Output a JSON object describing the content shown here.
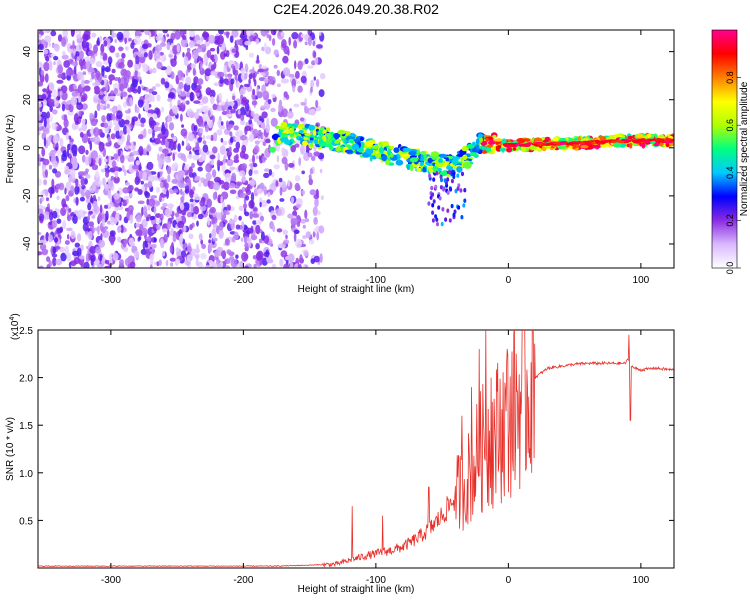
{
  "figure_title": "C2E4.2026.049.20.38.R02",
  "chart_data": [
    {
      "type": "heatmap",
      "xlabel": "Height of straight line (km)",
      "ylabel": "Frequency (Hz)",
      "xlim": [
        -355,
        125
      ],
      "ylim": [
        -50,
        49
      ],
      "xticks": [
        -300,
        -200,
        -100,
        0,
        100
      ],
      "yticks": [
        -40,
        -20,
        0,
        20,
        40
      ],
      "colorbar": {
        "label": "Normalized spectral amplitude",
        "range": [
          0.0,
          1.0
        ],
        "ticks": [
          "0.0",
          "0.2",
          "0.4",
          "0.6",
          "0.8"
        ],
        "colors": [
          "#ffffff",
          "#d9b8ff",
          "#8a2be2",
          "#0000ff",
          "#00c8ff",
          "#00ff80",
          "#b0ff00",
          "#ffff00",
          "#ff8000",
          "#ff0000",
          "#ff0090"
        ]
      },
      "regions": [
        {
          "name": "noise",
          "x_range": [
            -355,
            -140
          ],
          "y_range": [
            -50,
            49
          ],
          "amplitude": [
            0.05,
            0.25
          ]
        },
        {
          "name": "signal-track",
          "points": [
            [
              -175,
              6
            ],
            [
              -150,
              5
            ],
            [
              -120,
              2
            ],
            [
              -100,
              -1
            ],
            [
              -80,
              -4
            ],
            [
              -60,
              -6
            ],
            [
              -40,
              -8
            ],
            [
              -20,
              2
            ],
            [
              0,
              1
            ],
            [
              50,
              2
            ],
            [
              100,
              3
            ],
            [
              125,
              3
            ]
          ],
          "amplitude": [
            0.3,
            1.0
          ]
        }
      ]
    },
    {
      "type": "line",
      "xlabel": "Height of straight line (km)",
      "ylabel": "SNR (10 * v/v)",
      "multiplier_label": "(x10",
      "multiplier_exp": "4",
      "multiplier_close": ")",
      "xlim": [
        -355,
        125
      ],
      "ylim": [
        0,
        2.5
      ],
      "xticks": [
        -300,
        -200,
        -100,
        0,
        100
      ],
      "yticks": [
        0.5,
        1.0,
        1.5,
        2.0,
        2.5
      ],
      "ytick_labels": [
        "0.5",
        "1.0",
        "1.5",
        "2.0",
        "2.5"
      ],
      "series": [
        {
          "name": "SNR",
          "color": "#e8302a",
          "x": [
            -355,
            -300,
            -250,
            -200,
            -175,
            -150,
            -130,
            -120,
            -110,
            -100,
            -90,
            -80,
            -70,
            -60,
            -50,
            -40,
            -30,
            -25,
            -20,
            -15,
            -10,
            -5,
            0,
            5,
            10,
            15,
            20,
            25,
            30,
            40,
            50,
            60,
            70,
            80,
            88,
            91,
            93,
            95,
            100,
            110,
            125
          ],
          "y": [
            0.02,
            0.02,
            0.02,
            0.02,
            0.02,
            0.03,
            0.04,
            0.08,
            0.12,
            0.15,
            0.18,
            0.22,
            0.3,
            0.4,
            0.55,
            0.75,
            0.95,
            1.1,
            1.25,
            1.3,
            1.4,
            1.5,
            1.55,
            1.7,
            1.8,
            1.85,
            2.0,
            2.05,
            2.1,
            2.12,
            2.14,
            2.15,
            2.15,
            2.15,
            2.15,
            2.2,
            2.12,
            2.1,
            2.08,
            2.1,
            2.08
          ],
          "spikes": [
            [
              -118,
              0.65
            ],
            [
              -95,
              0.55
            ],
            [
              -60,
              0.85
            ],
            [
              -35,
              1.6
            ],
            [
              -28,
              1.9
            ],
            [
              -22,
              2.3
            ],
            [
              -17,
              2.5
            ],
            [
              -13,
              2.0
            ],
            [
              6,
              2.25
            ],
            [
              -1,
              2.3
            ],
            [
              91,
              2.45
            ],
            [
              92,
              1.55
            ]
          ]
        }
      ]
    }
  ]
}
